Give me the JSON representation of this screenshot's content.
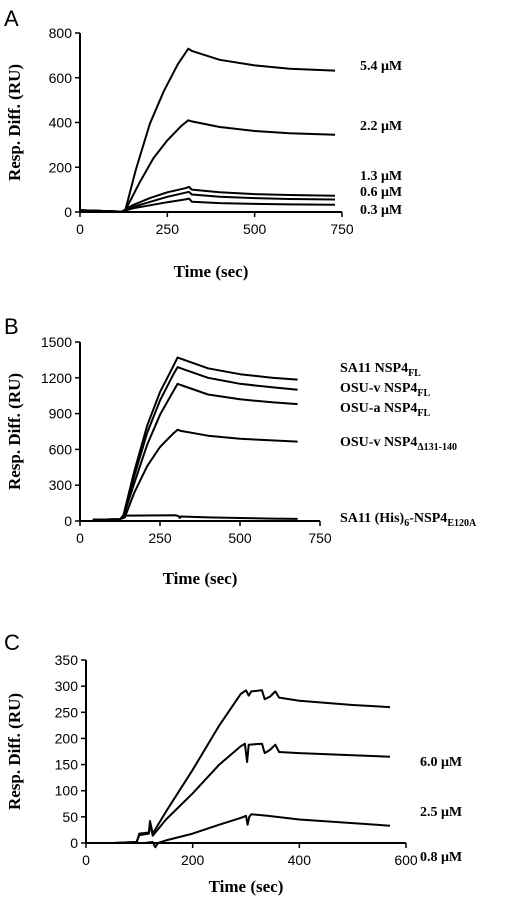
{
  "chart_data": [
    {
      "panel": "A",
      "type": "line",
      "xlabel": "Time (sec)",
      "ylabel": "Resp. Diff. (RU)",
      "xlim": [
        0,
        750
      ],
      "ylim": [
        0,
        800
      ],
      "xticks": [
        0,
        250,
        500,
        750
      ],
      "yticks": [
        0,
        200,
        400,
        600,
        800
      ],
      "series": [
        {
          "name": "5.4 μM",
          "points": [
            [
              0,
              8
            ],
            [
              120,
              2
            ],
            [
              130,
              10
            ],
            [
              160,
              190
            ],
            [
              200,
              395
            ],
            [
              240,
              540
            ],
            [
              280,
              660
            ],
            [
              310,
              730
            ],
            [
              320,
              720
            ],
            [
              400,
              680
            ],
            [
              500,
              655
            ],
            [
              600,
              640
            ],
            [
              730,
              632
            ]
          ]
        },
        {
          "name": "2.2 μM",
          "points": [
            [
              0,
              8
            ],
            [
              120,
              2
            ],
            [
              130,
              8
            ],
            [
              170,
              130
            ],
            [
              210,
              240
            ],
            [
              250,
              320
            ],
            [
              290,
              385
            ],
            [
              310,
              410
            ],
            [
              320,
              405
            ],
            [
              400,
              380
            ],
            [
              500,
              362
            ],
            [
              600,
              352
            ],
            [
              730,
              345
            ]
          ]
        },
        {
          "name": "1.3 μM",
          "points": [
            [
              0,
              8
            ],
            [
              120,
              2
            ],
            [
              150,
              30
            ],
            [
              200,
              62
            ],
            [
              250,
              88
            ],
            [
              300,
              106
            ],
            [
              312,
              112
            ],
            [
              320,
              100
            ],
            [
              400,
              88
            ],
            [
              500,
              80
            ],
            [
              600,
              76
            ],
            [
              730,
              73
            ]
          ]
        },
        {
          "name": "0.6 μM",
          "points": [
            [
              0,
              8
            ],
            [
              120,
              2
            ],
            [
              150,
              22
            ],
            [
              200,
              45
            ],
            [
              250,
              68
            ],
            [
              300,
              86
            ],
            [
              312,
              90
            ],
            [
              320,
              78
            ],
            [
              400,
              68
            ],
            [
              500,
              62
            ],
            [
              600,
              58
            ],
            [
              730,
              56
            ]
          ]
        },
        {
          "name": "0.3 μM",
          "points": [
            [
              0,
              8
            ],
            [
              120,
              2
            ],
            [
              150,
              16
            ],
            [
              200,
              30
            ],
            [
              250,
              44
            ],
            [
              300,
              56
            ],
            [
              312,
              60
            ],
            [
              320,
              46
            ],
            [
              400,
              40
            ],
            [
              500,
              36
            ],
            [
              600,
              34
            ],
            [
              730,
              32
            ]
          ]
        }
      ]
    },
    {
      "panel": "B",
      "type": "line",
      "xlabel": "Time (sec)",
      "ylabel": "Resp. Diff. (RU)",
      "xlim": [
        0,
        750
      ],
      "ylim": [
        0,
        1500
      ],
      "xticks": [
        0,
        250,
        500,
        750
      ],
      "yticks": [
        0,
        300,
        600,
        900,
        1200,
        1500
      ],
      "series": [
        {
          "name": "SA11 NSP4",
          "sub": "FL",
          "points": [
            [
              40,
              10
            ],
            [
              125,
              15
            ],
            [
              135,
              40
            ],
            [
              170,
              420
            ],
            [
              210,
              800
            ],
            [
              250,
              1080
            ],
            [
              290,
              1290
            ],
            [
              305,
              1370
            ],
            [
              315,
              1360
            ],
            [
              400,
              1280
            ],
            [
              500,
              1230
            ],
            [
              600,
              1200
            ],
            [
              680,
              1185
            ]
          ]
        },
        {
          "name": "OSU-v NSP4",
          "sub": "FL",
          "points": [
            [
              40,
              10
            ],
            [
              125,
              15
            ],
            [
              135,
              35
            ],
            [
              170,
              380
            ],
            [
              210,
              740
            ],
            [
              250,
              1010
            ],
            [
              290,
              1220
            ],
            [
              305,
              1290
            ],
            [
              315,
              1280
            ],
            [
              400,
              1200
            ],
            [
              500,
              1150
            ],
            [
              600,
              1120
            ],
            [
              680,
              1100
            ]
          ]
        },
        {
          "name": "OSU-a NSP4",
          "sub": "FL",
          "points": [
            [
              40,
              10
            ],
            [
              125,
              15
            ],
            [
              135,
              30
            ],
            [
              170,
              320
            ],
            [
              210,
              640
            ],
            [
              250,
              890
            ],
            [
              290,
              1080
            ],
            [
              305,
              1150
            ],
            [
              315,
              1140
            ],
            [
              400,
              1060
            ],
            [
              500,
              1020
            ],
            [
              600,
              995
            ],
            [
              680,
              980
            ]
          ]
        },
        {
          "name": "OSU-v NSP4",
          "sub": "Δ131-140",
          "points": [
            [
              40,
              10
            ],
            [
              125,
              15
            ],
            [
              140,
              30
            ],
            [
              170,
              240
            ],
            [
              210,
              460
            ],
            [
              250,
              620
            ],
            [
              290,
              730
            ],
            [
              305,
              765
            ],
            [
              315,
              755
            ],
            [
              400,
              715
            ],
            [
              500,
              690
            ],
            [
              600,
              675
            ],
            [
              680,
              665
            ]
          ]
        },
        {
          "name": "SA11 (His)",
          "sub": "6",
          "tail": "-NSP4",
          "tailsub": "E120A",
          "points": [
            [
              40,
              10
            ],
            [
              125,
              15
            ],
            [
              135,
              45
            ],
            [
              300,
              48
            ],
            [
              308,
              40
            ],
            [
              312,
              25
            ],
            [
              315,
              38
            ],
            [
              400,
              30
            ],
            [
              500,
              25
            ],
            [
              600,
              20
            ],
            [
              680,
              18
            ]
          ]
        }
      ]
    },
    {
      "panel": "C",
      "type": "line",
      "xlabel": "Time (sec)",
      "ylabel": "Resp. Diff. (RU)",
      "xlim": [
        0,
        600
      ],
      "ylim": [
        0,
        350
      ],
      "xticks": [
        0,
        200,
        400,
        600
      ],
      "yticks": [
        0,
        50,
        100,
        150,
        200,
        250,
        300,
        350
      ],
      "series": [
        {
          "name": "6.0 μM",
          "points": [
            [
              50,
              0
            ],
            [
              95,
              2
            ],
            [
              100,
              18
            ],
            [
              118,
              20
            ],
            [
              120,
              42
            ],
            [
              125,
              18
            ],
            [
              150,
              60
            ],
            [
              200,
              140
            ],
            [
              250,
              225
            ],
            [
              290,
              285
            ],
            [
              300,
              292
            ],
            [
              305,
              282
            ],
            [
              310,
              290
            ],
            [
              330,
              292
            ],
            [
              335,
              275
            ],
            [
              345,
              280
            ],
            [
              355,
              290
            ],
            [
              362,
              278
            ],
            [
              400,
              272
            ],
            [
              500,
              264
            ],
            [
              570,
              260
            ]
          ]
        },
        {
          "name": "2.5 μM",
          "points": [
            [
              50,
              0
            ],
            [
              95,
              2
            ],
            [
              100,
              15
            ],
            [
              118,
              18
            ],
            [
              120,
              38
            ],
            [
              125,
              14
            ],
            [
              150,
              45
            ],
            [
              200,
              95
            ],
            [
              250,
              150
            ],
            [
              290,
              185
            ],
            [
              298,
              190
            ],
            [
              302,
              155
            ],
            [
              305,
              188
            ],
            [
              330,
              190
            ],
            [
              335,
              172
            ],
            [
              345,
              178
            ],
            [
              355,
              188
            ],
            [
              362,
              174
            ],
            [
              400,
              172
            ],
            [
              500,
              168
            ],
            [
              570,
              165
            ]
          ]
        },
        {
          "name": "0.8 μM",
          "points": [
            [
              50,
              0
            ],
            [
              110,
              0
            ],
            [
              125,
              2
            ],
            [
              130,
              -8
            ],
            [
              135,
              0
            ],
            [
              150,
              5
            ],
            [
              200,
              18
            ],
            [
              250,
              35
            ],
            [
              290,
              48
            ],
            [
              300,
              52
            ],
            [
              303,
              35
            ],
            [
              306,
              50
            ],
            [
              310,
              55
            ],
            [
              340,
              52
            ],
            [
              400,
              45
            ],
            [
              500,
              38
            ],
            [
              570,
              33
            ]
          ]
        }
      ]
    }
  ]
}
